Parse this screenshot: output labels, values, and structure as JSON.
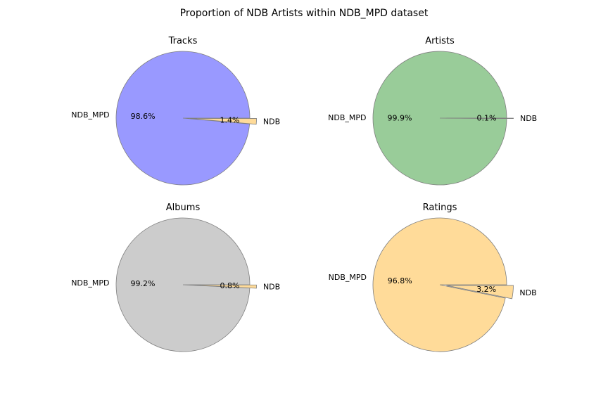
{
  "title": "Proportion of NDB Artists within NDB_MPD dataset",
  "colors": {
    "ndb_slice": "#ffdb99",
    "edge": "#7f7f7f",
    "text": "#000000"
  },
  "chart_data": [
    {
      "type": "pie",
      "title": "Tracks",
      "labels": [
        "NDB_MPD",
        "NDB"
      ],
      "values": [
        98.6,
        1.4
      ],
      "percent_labels": [
        "98.6%",
        "1.4%"
      ],
      "colors": [
        "#9999ff",
        "#ffdb99"
      ],
      "explode": [
        0,
        0.1
      ]
    },
    {
      "type": "pie",
      "title": "Artists",
      "labels": [
        "NDB_MPD",
        "NDB"
      ],
      "values": [
        99.9,
        0.1
      ],
      "percent_labels": [
        "99.9%",
        "0.1%"
      ],
      "colors": [
        "#99cc99",
        "#ffdb99"
      ],
      "explode": [
        0,
        0.1
      ]
    },
    {
      "type": "pie",
      "title": "Albums",
      "labels": [
        "NDB_MPD",
        "NDB"
      ],
      "values": [
        99.2,
        0.8
      ],
      "percent_labels": [
        "99.2%",
        "0.8%"
      ],
      "colors": [
        "#cccccc",
        "#ffdb99"
      ],
      "explode": [
        0,
        0.1
      ]
    },
    {
      "type": "pie",
      "title": "Ratings",
      "labels": [
        "NDB_MPD",
        "NDB"
      ],
      "values": [
        96.8,
        3.2
      ],
      "percent_labels": [
        "96.8%",
        "3.2%"
      ],
      "colors": [
        "#ffdb99",
        "#ffdb99"
      ],
      "explode": [
        0,
        0.1
      ]
    }
  ]
}
